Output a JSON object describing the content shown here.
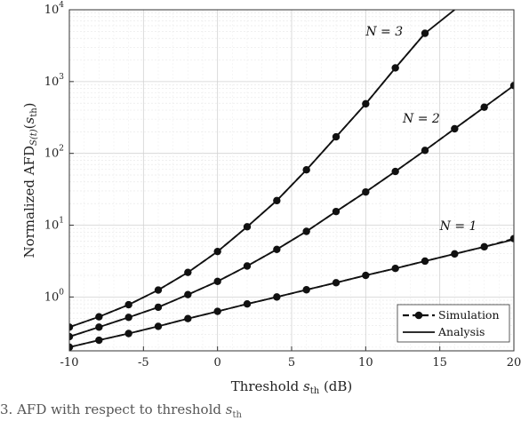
{
  "chart_data": {
    "type": "line",
    "xlabel": "Threshold s_th (dB)",
    "ylabel": "Normalized AFD_S(t)(s_th)",
    "xlim": [
      -10,
      20
    ],
    "ylim_log10": [
      -0.75,
      4
    ],
    "y_scale": "log",
    "grid": true,
    "x_ticks": [
      "-10",
      "-5",
      "0",
      "5",
      "10",
      "15",
      "20"
    ],
    "y_ticks": [
      "10^0",
      "10^1",
      "10^2",
      "10^3",
      "10^4"
    ],
    "x": [
      -10,
      -8,
      -6,
      -4,
      -2,
      0,
      2,
      4,
      6,
      8,
      10,
      12,
      14,
      16,
      18,
      20
    ],
    "series": [
      {
        "name": "N = 1",
        "label_x": 15,
        "label_y": 8.5,
        "simulation": [
          0.2,
          0.25,
          0.31,
          0.39,
          0.5,
          0.63,
          0.8,
          1.0,
          1.26,
          1.58,
          2.0,
          2.5,
          3.16,
          3.98,
          5.0,
          6.5
        ],
        "analysis": [
          0.2,
          0.25,
          0.31,
          0.39,
          0.5,
          0.63,
          0.8,
          1.0,
          1.26,
          1.58,
          2.0,
          2.5,
          3.16,
          3.98,
          5.0,
          6.3
        ]
      },
      {
        "name": "N = 2",
        "label_x": 12.5,
        "label_y": 270,
        "simulation": [
          0.28,
          0.38,
          0.52,
          0.72,
          1.08,
          1.65,
          2.7,
          4.6,
          8.2,
          15.5,
          29,
          56,
          110,
          220,
          440,
          880
        ],
        "analysis": [
          0.28,
          0.38,
          0.52,
          0.72,
          1.08,
          1.65,
          2.7,
          4.6,
          8.2,
          15.5,
          29,
          56,
          110,
          220,
          440,
          880
        ]
      },
      {
        "name": "N = 3",
        "label_x": 10,
        "label_y": 4400,
        "simulation": [
          0.38,
          0.53,
          0.78,
          1.25,
          2.2,
          4.3,
          9.5,
          22,
          59,
          170,
          490,
          1550,
          4700
        ],
        "analysis": [
          0.38,
          0.53,
          0.78,
          1.25,
          2.2,
          4.3,
          9.5,
          22,
          59,
          170,
          490,
          1550,
          4700,
          10000
        ]
      }
    ],
    "legend": {
      "placement": "bottom-right",
      "entries": [
        "Simulation",
        "Analysis"
      ]
    }
  },
  "caption": "3.  AFD with respect to threshold s_th"
}
